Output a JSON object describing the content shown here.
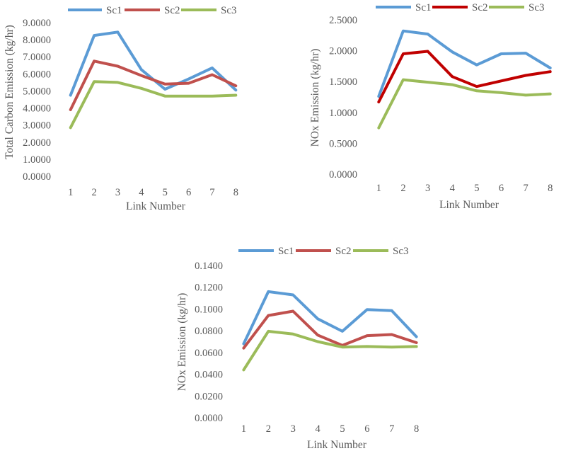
{
  "chart_data": [
    {
      "type": "line",
      "categories": [
        "1",
        "2",
        "3",
        "4",
        "5",
        "6",
        "7",
        "8"
      ],
      "xlabel": "Link Number",
      "ylabel": "Total Carbon Emission (kg/hr)",
      "ylim": [
        0,
        9
      ],
      "yticks": [
        "0.0000",
        "1.0000",
        "2.0000",
        "3.0000",
        "4.0000",
        "5.0000",
        "6.0000",
        "7.0000",
        "8.0000",
        "9.0000"
      ],
      "grid": false,
      "legend": "top",
      "series": [
        {
          "name": "Sc1",
          "color": "#5b9bd5",
          "values": [
            4.75,
            8.25,
            8.45,
            6.25,
            5.1,
            5.7,
            6.35,
            5.05
          ]
        },
        {
          "name": "Sc2",
          "color": "#c0504d",
          "values": [
            3.9,
            6.75,
            6.45,
            5.9,
            5.4,
            5.45,
            5.95,
            5.3
          ]
        },
        {
          "name": "Sc3",
          "color": "#9bbb59",
          "values": [
            2.85,
            5.55,
            5.5,
            5.15,
            4.7,
            4.7,
            4.7,
            4.75
          ]
        }
      ]
    },
    {
      "type": "line",
      "categories": [
        "1",
        "2",
        "3",
        "4",
        "5",
        "6",
        "7",
        "8"
      ],
      "xlabel": "Link Number",
      "ylabel": "NOx Emission (kg/hr)",
      "ylim": [
        0,
        2.5
      ],
      "yticks": [
        "0.0000",
        "0.5000",
        "1.0000",
        "1.5000",
        "2.0000",
        "2.5000"
      ],
      "grid": false,
      "legend": "top",
      "series": [
        {
          "name": "Sc1",
          "color": "#5b9bd5",
          "values": [
            1.26,
            2.32,
            2.27,
            1.98,
            1.77,
            1.95,
            1.96,
            1.72
          ]
        },
        {
          "name": "Sc2",
          "color": "#c00000",
          "values": [
            1.17,
            1.95,
            1.99,
            1.58,
            1.42,
            1.51,
            1.6,
            1.66
          ]
        },
        {
          "name": "Sc3",
          "color": "#9bbb59",
          "values": [
            0.75,
            1.53,
            1.49,
            1.45,
            1.35,
            1.32,
            1.28,
            1.3
          ]
        }
      ]
    },
    {
      "type": "line",
      "categories": [
        "1",
        "2",
        "3",
        "4",
        "5",
        "6",
        "7",
        "8"
      ],
      "xlabel": "Link Number",
      "ylabel": "NOx Emission (kg/hr)",
      "ylim": [
        0,
        0.14
      ],
      "yticks": [
        "0.0000",
        "0.0200",
        "0.0400",
        "0.0600",
        "0.0800",
        "0.1000",
        "0.1200",
        "0.1400"
      ],
      "grid": false,
      "legend": "top",
      "series": [
        {
          "name": "Sc1",
          "color": "#5b9bd5",
          "values": [
            0.068,
            0.116,
            0.113,
            0.091,
            0.0795,
            0.0995,
            0.0985,
            0.0745
          ]
        },
        {
          "name": "Sc2",
          "color": "#c0504d",
          "values": [
            0.064,
            0.094,
            0.098,
            0.076,
            0.0665,
            0.0755,
            0.0765,
            0.069
          ]
        },
        {
          "name": "Sc3",
          "color": "#9bbb59",
          "values": [
            0.044,
            0.0795,
            0.077,
            0.07,
            0.065,
            0.0655,
            0.065,
            0.0655
          ]
        }
      ]
    }
  ]
}
